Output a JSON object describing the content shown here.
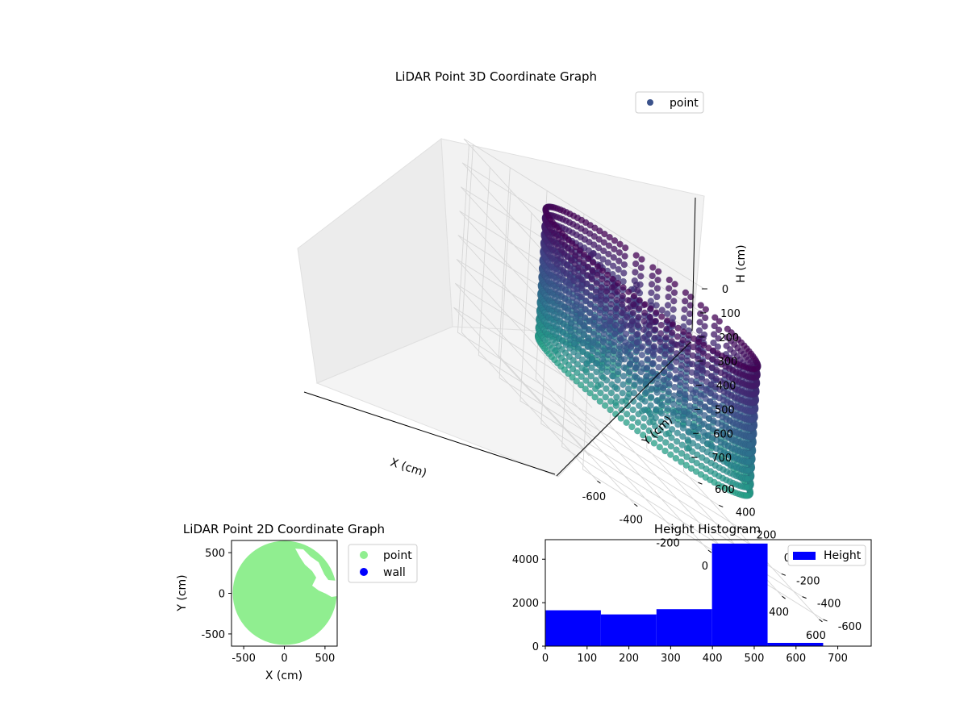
{
  "chart_data": [
    {
      "type": "scatter",
      "title": "LiDAR Point 3D Coordinate Graph",
      "xlabel": "X (cm)",
      "ylabel": "Y (cm)",
      "zlabel": "H (cm)",
      "xlim": [
        -650,
        650
      ],
      "ylim": [
        -650,
        650
      ],
      "zlim": [
        780,
        0
      ],
      "x_ticks": [
        -600,
        -400,
        -200,
        0,
        200,
        400,
        600
      ],
      "y_ticks": [
        -600,
        -400,
        -200,
        0,
        200,
        400,
        600
      ],
      "z_ticks": [
        0,
        100,
        200,
        300,
        400,
        500,
        600,
        700
      ],
      "grid": true,
      "legend": {
        "position": "top-right",
        "entries": [
          {
            "label": "point",
            "color": "#3b528b"
          }
        ]
      },
      "colormap": "viridis",
      "series": [
        {
          "name": "point",
          "description_of_shape": "cylindrical wall of radius ~500 cm from H 0 to ~530 cm plus interior clutter",
          "wall_radius": 500,
          "wall_height_range": [
            0,
            530
          ]
        }
      ]
    },
    {
      "type": "scatter",
      "title": "LiDAR Point 2D Coordinate Graph",
      "xlabel": "X (cm)",
      "ylabel": "Y (cm)",
      "xlim": [
        -650,
        650
      ],
      "ylim": [
        -650,
        650
      ],
      "x_ticks": [
        -500,
        0,
        500
      ],
      "y_ticks": [
        -500,
        0,
        500
      ],
      "legend": {
        "position": "outside-right",
        "entries": [
          {
            "label": "point",
            "color": "#90ee90"
          },
          {
            "label": "wall",
            "color": "#0000ff"
          }
        ]
      },
      "series": [
        {
          "name": "point",
          "color": "#90ee90",
          "disc_radius": 640
        },
        {
          "name": "wall",
          "color": "#0000ff",
          "values": []
        }
      ]
    },
    {
      "type": "bar",
      "title": "Height Histogram",
      "xlim": [
        0,
        780
      ],
      "ylim": [
        0,
        4900
      ],
      "x_ticks": [
        0,
        100,
        200,
        300,
        400,
        500,
        600,
        700
      ],
      "y_ticks": [
        0,
        2000,
        4000
      ],
      "legend": {
        "position": "top-right",
        "entries": [
          {
            "label": "Height",
            "color": "#0000ff"
          }
        ]
      },
      "bin_edges": [
        0,
        133,
        266,
        399,
        532,
        665,
        780
      ],
      "counts": [
        1650,
        1460,
        1700,
        4720,
        150,
        0
      ],
      "color": "#0000ff"
    }
  ]
}
